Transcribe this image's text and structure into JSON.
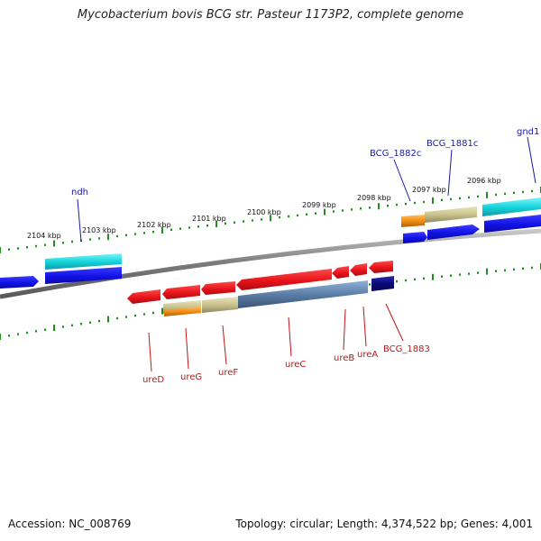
{
  "header": {
    "title": "Mycobacterium bovis BCG str. Pasteur 1173P2, complete genome"
  },
  "footer": {
    "accession": "Accession: NC_008769",
    "topology": "Topology: circular; Length: 4,374,522 bp; Genes: 4,001"
  },
  "ruler": {
    "labels": [
      "2104 kbp",
      "2103 kbp",
      "2102 kbp",
      "2101 kbp",
      "2100 kbp",
      "2099 kbp",
      "2098 kbp",
      "2097 kbp",
      "2096 kbp"
    ]
  },
  "genes_top": [
    {
      "name": "ndh",
      "color": "#1a1aa8"
    },
    {
      "name": "BCG_1882c",
      "color": "#1a1aa8"
    },
    {
      "name": "BCG_1881c",
      "color": "#1a1aa8"
    },
    {
      "name": "gnd1",
      "color": "#1a1aa8"
    }
  ],
  "genes_bottom": [
    {
      "name": "ureD",
      "color": "#c21414"
    },
    {
      "name": "ureG",
      "color": "#c21414"
    },
    {
      "name": "ureF",
      "color": "#c21414"
    },
    {
      "name": "ureC",
      "color": "#c21414"
    },
    {
      "name": "ureB",
      "color": "#c21414"
    },
    {
      "name": "ureA",
      "color": "#c21414"
    },
    {
      "name": "BCG_1883",
      "color": "#c21414"
    }
  ],
  "colors": {
    "cds_forward": "#e8141a",
    "cds_reverse": "#1616e0",
    "gene_cyan": "#17d6df",
    "gene_tan": "#c9c28e",
    "gene_orange": "#f38c14",
    "gene_steelblue": "#5b7ea8",
    "gene_navy": "#0a0a7a",
    "backbone": "#8a8a8a",
    "tick": "#1f8f1f"
  }
}
